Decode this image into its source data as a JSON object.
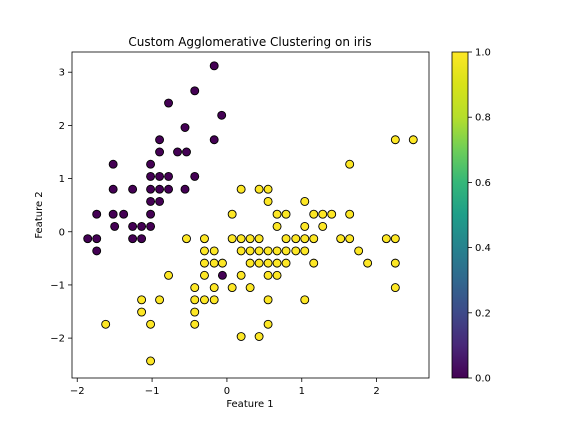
{
  "chart_data": {
    "type": "scatter",
    "title": "Custom Agglomerative Clustering on iris",
    "xlabel": "Feature 1",
    "ylabel": "Feature 2",
    "xlim": [
      -2.07,
      2.7
    ],
    "ylim": [
      -2.75,
      3.38
    ],
    "xticks": [
      -2,
      -1,
      0,
      1,
      2
    ],
    "yticks": [
      -2,
      -1,
      0,
      1,
      2,
      3
    ],
    "grid": false,
    "colorbar": {
      "range": [
        0.0,
        1.0
      ],
      "ticks": [
        "0.0",
        "0.2",
        "0.4",
        "0.6",
        "0.8",
        "1.0"
      ],
      "colormap": "viridis",
      "placement": "right"
    },
    "colors": {
      "cluster_0": "#440154",
      "cluster_1": "#fde725",
      "edge": "#000000"
    },
    "series": [
      {
        "cluster": 0,
        "points": [
          [
            -0.17,
            3.12
          ],
          [
            -0.43,
            2.65
          ],
          [
            -0.78,
            2.42
          ],
          [
            -0.07,
            2.19
          ],
          [
            -0.56,
            1.96
          ],
          [
            -0.17,
            1.73
          ],
          [
            -0.9,
            1.73
          ],
          [
            -0.9,
            1.5
          ],
          [
            -0.66,
            1.5
          ],
          [
            -0.54,
            1.5
          ],
          [
            -1.02,
            1.27
          ],
          [
            -1.52,
            1.27
          ],
          [
            -1.02,
            1.04
          ],
          [
            -0.9,
            1.04
          ],
          [
            -0.78,
            1.04
          ],
          [
            -0.43,
            1.04
          ],
          [
            -1.52,
            0.8
          ],
          [
            -1.26,
            0.8
          ],
          [
            -1.02,
            0.8
          ],
          [
            -0.9,
            0.8
          ],
          [
            -0.78,
            0.8
          ],
          [
            -0.56,
            0.8
          ],
          [
            -1.02,
            0.57
          ],
          [
            -0.9,
            0.57
          ],
          [
            -1.74,
            0.33
          ],
          [
            -1.52,
            0.33
          ],
          [
            -1.38,
            0.33
          ],
          [
            -1.02,
            0.33
          ],
          [
            -1.26,
            0.1
          ],
          [
            -1.14,
            0.1
          ],
          [
            -1.02,
            0.1
          ],
          [
            -1.5,
            0.1
          ],
          [
            -1.86,
            -0.13
          ],
          [
            -1.74,
            -0.13
          ],
          [
            -1.26,
            -0.13
          ],
          [
            -1.14,
            -0.13
          ],
          [
            -1.74,
            -0.36
          ],
          [
            -0.06,
            -0.82
          ]
        ]
      },
      {
        "cluster": 1,
        "points": [
          [
            2.25,
            1.73
          ],
          [
            2.49,
            1.73
          ],
          [
            1.64,
            1.27
          ],
          [
            0.19,
            0.8
          ],
          [
            0.43,
            0.8
          ],
          [
            0.55,
            0.8
          ],
          [
            0.55,
            0.57
          ],
          [
            1.04,
            0.57
          ],
          [
            0.07,
            0.33
          ],
          [
            0.67,
            0.33
          ],
          [
            0.79,
            0.33
          ],
          [
            1.16,
            0.33
          ],
          [
            1.28,
            0.33
          ],
          [
            1.4,
            0.33
          ],
          [
            1.64,
            0.33
          ],
          [
            0.67,
            0.1
          ],
          [
            1.04,
            0.1
          ],
          [
            1.28,
            0.1
          ],
          [
            -0.54,
            -0.13
          ],
          [
            -0.3,
            -0.13
          ],
          [
            0.07,
            -0.13
          ],
          [
            0.19,
            -0.13
          ],
          [
            0.31,
            -0.13
          ],
          [
            0.43,
            -0.13
          ],
          [
            0.79,
            -0.13
          ],
          [
            0.92,
            -0.13
          ],
          [
            1.04,
            -0.13
          ],
          [
            1.16,
            -0.13
          ],
          [
            1.52,
            -0.13
          ],
          [
            1.64,
            -0.13
          ],
          [
            2.13,
            -0.13
          ],
          [
            2.25,
            -0.13
          ],
          [
            -0.3,
            -0.36
          ],
          [
            -0.17,
            -0.36
          ],
          [
            0.19,
            -0.36
          ],
          [
            0.31,
            -0.36
          ],
          [
            0.43,
            -0.36
          ],
          [
            0.55,
            -0.36
          ],
          [
            0.67,
            -0.36
          ],
          [
            0.79,
            -0.36
          ],
          [
            0.92,
            -0.36
          ],
          [
            1.04,
            -0.36
          ],
          [
            1.76,
            -0.36
          ],
          [
            -0.3,
            -0.59
          ],
          [
            -0.17,
            -0.59
          ],
          [
            -0.06,
            -0.59
          ],
          [
            0.31,
            -0.59
          ],
          [
            0.43,
            -0.59
          ],
          [
            0.55,
            -0.59
          ],
          [
            0.67,
            -0.59
          ],
          [
            0.79,
            -0.59
          ],
          [
            1.16,
            -0.59
          ],
          [
            1.88,
            -0.59
          ],
          [
            2.25,
            -0.59
          ],
          [
            -0.78,
            -0.82
          ],
          [
            -0.3,
            -0.82
          ],
          [
            0.19,
            -0.82
          ],
          [
            0.55,
            -0.82
          ],
          [
            0.67,
            -0.82
          ],
          [
            -0.43,
            -1.05
          ],
          [
            -0.17,
            -1.05
          ],
          [
            0.07,
            -1.05
          ],
          [
            0.31,
            -1.05
          ],
          [
            2.25,
            -1.05
          ],
          [
            -1.14,
            -1.28
          ],
          [
            -0.9,
            -1.28
          ],
          [
            -0.43,
            -1.28
          ],
          [
            -0.3,
            -1.28
          ],
          [
            -0.17,
            -1.28
          ],
          [
            0.55,
            -1.28
          ],
          [
            1.04,
            -1.28
          ],
          [
            -1.14,
            -1.51
          ],
          [
            -0.43,
            -1.51
          ],
          [
            -1.62,
            -1.74
          ],
          [
            -1.02,
            -1.74
          ],
          [
            -0.43,
            -1.74
          ],
          [
            0.55,
            -1.74
          ],
          [
            0.19,
            -1.97
          ],
          [
            0.43,
            -1.97
          ],
          [
            -1.02,
            -2.43
          ]
        ]
      }
    ]
  }
}
